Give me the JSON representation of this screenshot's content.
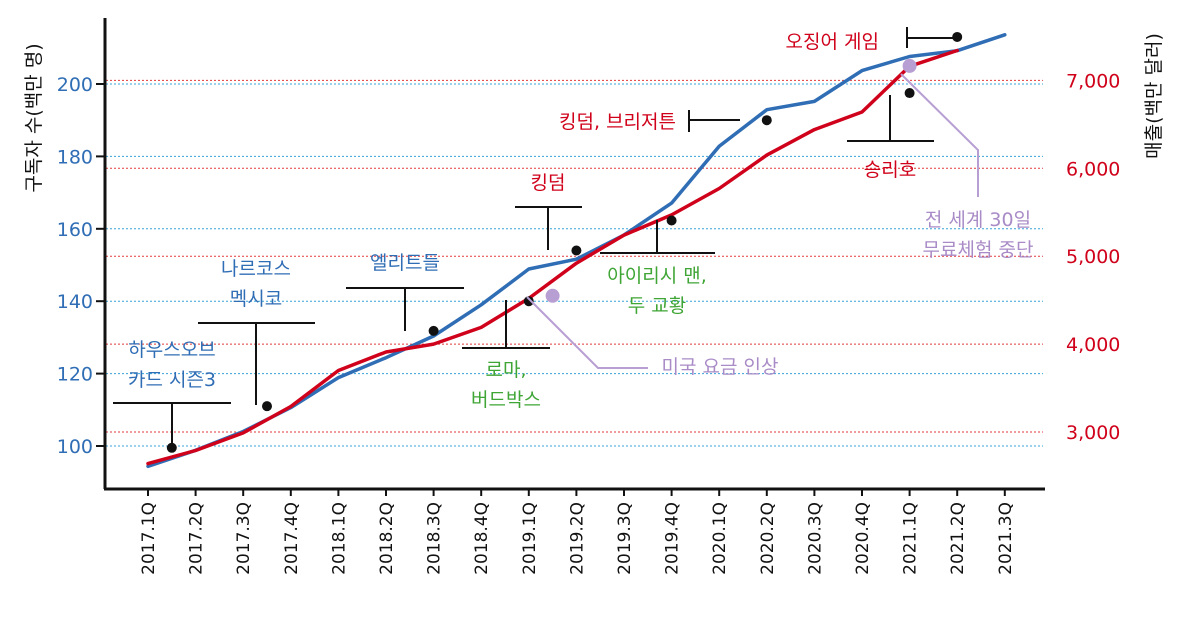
{
  "chart_data": {
    "type": "line",
    "title": "",
    "xlabel": "",
    "ylabel_left": "구독자 수(백만 명)",
    "ylabel_right": "매출(백만 달러)",
    "categories": [
      "2017.1Q",
      "2017.2Q",
      "2017.3Q",
      "2017.4Q",
      "2018.1Q",
      "2018.2Q",
      "2018.3Q",
      "2018.4Q",
      "2019.1Q",
      "2019.2Q",
      "2019.3Q",
      "2019.4Q",
      "2020.1Q",
      "2020.2Q",
      "2020.3Q",
      "2020.4Q",
      "2021.1Q",
      "2021.2Q",
      "2021.3Q"
    ],
    "y_left": {
      "range": [
        88,
        216
      ],
      "ticks": [
        "100",
        "120",
        "140",
        "160",
        "180",
        "200"
      ]
    },
    "y_right": {
      "range": [
        2350,
        7650
      ],
      "ticks": [
        "3,000",
        "4,000",
        "5,000",
        "6,000",
        "7,000"
      ]
    },
    "grid": true,
    "series": [
      {
        "axis": "left",
        "color": "#2f6db5",
        "values": [
          94.4,
          98.8,
          104.0,
          110.6,
          118.9,
          124.4,
          130.4,
          139.0,
          148.9,
          151.6,
          158.3,
          167.1,
          182.8,
          192.9,
          195.2,
          203.7,
          207.6,
          209.2,
          213.6
        ]
      },
      {
        "axis": "right",
        "color": "#d0021b",
        "values": [
          2640,
          2790,
          2990,
          3290,
          3700,
          3910,
          4000,
          4190,
          4520,
          4920,
          5240,
          5470,
          5770,
          6150,
          6440,
          6640,
          7160,
          7340,
          null
        ]
      }
    ],
    "annotations": [
      {
        "lines": [
          "하우스오브",
          "카드 시즌3"
        ],
        "color": "#2f6db5",
        "dot_at": [
          0.5,
          99.5
        ],
        "dot_color": "#111111"
      },
      {
        "lines": [
          "나르코스",
          "멕시코"
        ],
        "color": "#2f6db5",
        "dot_at": [
          2.5,
          111.0
        ],
        "dot_color": "#111111"
      },
      {
        "lines": [
          "엘리트들"
        ],
        "color": "#2f6db5",
        "dot_at": [
          6.0,
          131.8
        ],
        "dot_color": "#111111"
      },
      {
        "lines": [
          "로마,",
          "버드박스"
        ],
        "color": "#3fa535",
        "dot_at": [
          8.0,
          140.0
        ],
        "dot_color": "#111111"
      },
      {
        "lines": [
          "킹덤"
        ],
        "color": "#d0021b",
        "dot_at": [
          9.0,
          154.0
        ],
        "dot_color": "#111111"
      },
      {
        "lines": [
          "아이리시 맨,",
          "두 교황"
        ],
        "color": "#3fa535",
        "dot_at": [
          11.0,
          162.3
        ],
        "dot_color": "#111111"
      },
      {
        "lines": [
          "킹덤, 브리저튼"
        ],
        "color": "#d0021b",
        "dot_at": [
          13.0,
          190.0
        ],
        "dot_color": "#111111"
      },
      {
        "lines": [
          "승리호"
        ],
        "color": "#d0021b",
        "dot_at": [
          16.0,
          197.5
        ],
        "dot_color": "#111111"
      },
      {
        "lines": [
          "오징어 게임"
        ],
        "color": "#d0021b",
        "dot_at": [
          17.0,
          213.0
        ],
        "dot_color": "#111111"
      },
      {
        "lines": [
          "미국 요금 인상"
        ],
        "color": "#a98bc7",
        "dot_at": [
          8.5,
          141.5
        ],
        "dot_color": "#b79ed3"
      },
      {
        "lines": [
          "전 세계 30일",
          "무료체험 중단"
        ],
        "color": "#a98bc7",
        "dot_at": [
          16.0,
          205.0
        ],
        "dot_color": "#b79ed3"
      }
    ]
  }
}
